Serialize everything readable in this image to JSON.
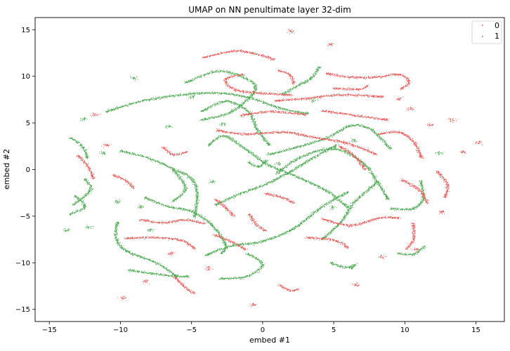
{
  "chart_data": {
    "type": "scatter",
    "title": "UMAP on NN penultimate layer 32-dim",
    "xlabel": "embed #1",
    "ylabel": "embed #2",
    "xlim": [
      -16,
      17
    ],
    "ylim": [
      -16.3,
      16.3
    ],
    "xticks": [
      -15,
      -10,
      -5,
      0,
      5,
      10,
      15
    ],
    "yticks": [
      -15,
      -10,
      -5,
      0,
      5,
      10,
      15
    ],
    "grid": false,
    "legend": "top-right",
    "series": [
      {
        "name": "0",
        "color": "#e8534f",
        "strands": [
          [
            [
              -4.2,
              12.0
            ],
            [
              -2.0,
              12.7
            ],
            [
              -0.5,
              12.4
            ],
            [
              0.8,
              11.8
            ]
          ],
          [
            [
              -1.3,
              10.2
            ],
            [
              -2.6,
              9.7
            ],
            [
              -2.0,
              8.6
            ],
            [
              -0.3,
              8.2
            ],
            [
              2.0,
              8.0
            ]
          ],
          [
            [
              4.5,
              10.3
            ],
            [
              6.2,
              9.9
            ],
            [
              8.0,
              9.9
            ],
            [
              9.6,
              10.2
            ],
            [
              10.3,
              9.4
            ],
            [
              9.7,
              8.6
            ]
          ],
          [
            [
              5.0,
              8.7
            ],
            [
              6.8,
              8.6
            ],
            [
              7.4,
              9.0
            ]
          ],
          [
            [
              0.9,
              7.4
            ],
            [
              3.0,
              7.6
            ],
            [
              5.5,
              8.0
            ],
            [
              8.5,
              7.8
            ]
          ],
          [
            [
              1.1,
              10.6
            ],
            [
              1.9,
              10.2
            ],
            [
              2.2,
              9.2
            ]
          ],
          [
            [
              -1.5,
              5.8
            ],
            [
              0.5,
              6.2
            ],
            [
              3.0,
              5.9
            ]
          ],
          [
            [
              4.2,
              6.3
            ],
            [
              6.5,
              5.8
            ],
            [
              8.8,
              5.3
            ]
          ],
          [
            [
              -3.2,
              4.2
            ],
            [
              -1.2,
              3.8
            ],
            [
              1.6,
              4.0
            ],
            [
              3.4,
              3.5
            ],
            [
              6.0,
              2.8
            ],
            [
              8.0,
              1.6
            ]
          ],
          [
            [
              -7.0,
              2.4
            ],
            [
              -6.3,
              1.6
            ],
            [
              -5.3,
              1.9
            ]
          ],
          [
            [
              -10.5,
              -0.6
            ],
            [
              -9.6,
              -1.2
            ],
            [
              -9.1,
              -2.0
            ]
          ],
          [
            [
              -8.6,
              -5.4
            ],
            [
              -7.0,
              -5.7
            ],
            [
              -5.4,
              -5.4
            ],
            [
              -4.1,
              -5.8
            ]
          ],
          [
            [
              -9.6,
              -7.4
            ],
            [
              -7.6,
              -7.3
            ],
            [
              -5.7,
              -7.6
            ],
            [
              -4.8,
              -8.5
            ]
          ],
          [
            [
              -3.4,
              -7.0
            ],
            [
              -2.0,
              -7.9
            ],
            [
              -1.2,
              -8.6
            ]
          ],
          [
            [
              -0.9,
              -4.8
            ],
            [
              -0.5,
              -5.8
            ],
            [
              0.2,
              -6.6
            ]
          ],
          [
            [
              4.2,
              -5.3
            ],
            [
              6.2,
              -6.0
            ],
            [
              8.2,
              -5.2
            ],
            [
              9.6,
              -5.2
            ]
          ],
          [
            [
              3.1,
              -7.3
            ],
            [
              5.1,
              -7.6
            ],
            [
              6.0,
              -8.4
            ]
          ],
          [
            [
              5.4,
              2.5
            ],
            [
              6.5,
              1.4
            ],
            [
              7.2,
              0.0
            ]
          ],
          [
            [
              9.8,
              -1.1
            ],
            [
              11.0,
              -2.2
            ],
            [
              11.6,
              -3.6
            ]
          ],
          [
            [
              12.3,
              -0.2
            ],
            [
              13.0,
              -1.7
            ],
            [
              12.8,
              -3.0
            ]
          ],
          [
            [
              8.2,
              3.8
            ],
            [
              9.6,
              4.0
            ],
            [
              10.6,
              3.0
            ],
            [
              11.2,
              1.2
            ]
          ],
          [
            [
              10.6,
              -5.8
            ],
            [
              10.6,
              -7.5
            ],
            [
              10.1,
              -8.5
            ]
          ],
          [
            [
              -6.2,
              -11.5
            ],
            [
              -5.5,
              -12.6
            ],
            [
              -4.8,
              -13.3
            ]
          ],
          [
            [
              1.2,
              -12.4
            ],
            [
              2.0,
              -13.0
            ],
            [
              2.5,
              -12.8
            ]
          ],
          [
            [
              -13.0,
              1.5
            ],
            [
              -12.3,
              0.4
            ],
            [
              -11.9,
              -1.0
            ]
          ],
          [
            [
              0.2,
              -2.6
            ],
            [
              1.4,
              -3.0
            ],
            [
              2.2,
              -3.6
            ]
          ],
          [
            [
              -3.3,
              -3.2
            ],
            [
              -2.6,
              -4.1
            ],
            [
              -2.0,
              -5.0
            ]
          ]
        ],
        "clusters": [
          [
            -11.0,
            2.6
          ],
          [
            -8.2,
            -12.0
          ],
          [
            -6.4,
            -9.0
          ],
          [
            4.8,
            13.4
          ],
          [
            2.0,
            14.8
          ],
          [
            9.6,
            7.6
          ],
          [
            10.4,
            6.5
          ],
          [
            -11.8,
            5.9
          ],
          [
            12.6,
            -4.6
          ],
          [
            8.4,
            -9.4
          ],
          [
            11.8,
            4.8
          ],
          [
            6.6,
            -12.4
          ],
          [
            -3.8,
            -10.6
          ],
          [
            -0.7,
            -14.5
          ],
          [
            14.1,
            1.9
          ],
          [
            13.3,
            5.3
          ],
          [
            15.2,
            2.9
          ],
          [
            10.8,
            -8.6
          ],
          [
            -9.8,
            -13.8
          ]
        ]
      },
      {
        "name": "1",
        "color": "#45a64a",
        "strands": [
          [
            [
              -11.0,
              6.2
            ],
            [
              -8.0,
              7.5
            ],
            [
              -4.0,
              8.2
            ],
            [
              -1.2,
              7.8
            ],
            [
              1.4,
              6.5
            ],
            [
              3.2,
              6.0
            ]
          ],
          [
            [
              -5.4,
              9.3
            ],
            [
              -3.3,
              10.5
            ],
            [
              -1.5,
              10.0
            ],
            [
              -0.5,
              8.6
            ],
            [
              -2.2,
              6.2
            ],
            [
              -4.3,
              5.3
            ]
          ],
          [
            [
              -3.8,
              2.6
            ],
            [
              -2.7,
              3.6
            ],
            [
              -1.2,
              2.2
            ],
            [
              0.4,
              0.5
            ],
            [
              2.6,
              -0.9
            ],
            [
              4.6,
              -2.4
            ],
            [
              6.0,
              -4.1
            ]
          ],
          [
            [
              -10.0,
              2.0
            ],
            [
              -8.0,
              1.2
            ],
            [
              -6.2,
              0.0
            ],
            [
              -5.0,
              -1.0
            ],
            [
              -4.6,
              -2.8
            ],
            [
              -4.8,
              -5.1
            ]
          ],
          [
            [
              -8.3,
              -3.0
            ],
            [
              -6.8,
              -3.9
            ],
            [
              -5.0,
              -4.5
            ],
            [
              -3.6,
              -5.9
            ],
            [
              -2.6,
              -8.1
            ],
            [
              -2.9,
              -9.0
            ]
          ],
          [
            [
              -4.0,
              -9.2
            ],
            [
              -2.2,
              -8.2
            ],
            [
              0.0,
              -7.7
            ],
            [
              2.2,
              -6.3
            ],
            [
              4.2,
              -4.0
            ],
            [
              6.0,
              -2.4
            ]
          ],
          [
            [
              -3.3,
              -3.8
            ],
            [
              -1.6,
              -2.6
            ],
            [
              0.2,
              -1.6
            ],
            [
              2.0,
              -0.2
            ],
            [
              3.5,
              1.2
            ],
            [
              5.2,
              2.6
            ]
          ],
          [
            [
              0.4,
              1.6
            ],
            [
              2.2,
              2.3
            ],
            [
              4.5,
              3.4
            ],
            [
              6.2,
              4.7
            ],
            [
              7.5,
              4.4
            ],
            [
              8.4,
              3.2
            ],
            [
              9.0,
              2.2
            ]
          ],
          [
            [
              1.0,
              -0.4
            ],
            [
              2.8,
              1.4
            ],
            [
              5.0,
              2.2
            ],
            [
              7.0,
              0.8
            ],
            [
              8.2,
              -1.6
            ],
            [
              8.8,
              -3.2
            ]
          ],
          [
            [
              4.2,
              -7.5
            ],
            [
              5.6,
              -5.5
            ],
            [
              6.4,
              -3.6
            ],
            [
              8.0,
              -1.4
            ]
          ],
          [
            [
              -6.0,
              -11.5
            ],
            [
              -7.5,
              -10.0
            ],
            [
              -9.5,
              -8.8
            ],
            [
              -10.3,
              -7.4
            ],
            [
              -10.2,
              -5.6
            ]
          ],
          [
            [
              -9.4,
              -10.8
            ],
            [
              -8.0,
              -11.1
            ],
            [
              -6.6,
              -11.4
            ],
            [
              -5.2,
              -11.5
            ]
          ],
          [
            [
              -3.0,
              -11.7
            ],
            [
              -1.2,
              -11.5
            ],
            [
              0.0,
              -10.2
            ],
            [
              -1.1,
              -9.0
            ]
          ],
          [
            [
              -12.5,
              -1.0
            ],
            [
              -12.1,
              -2.2
            ],
            [
              -13.3,
              -3.8
            ]
          ],
          [
            [
              -13.5,
              3.4
            ],
            [
              -12.7,
              2.5
            ],
            [
              -12.3,
              1.2
            ]
          ],
          [
            [
              -4.3,
              6.2
            ],
            [
              -2.6,
              7.3
            ],
            [
              -1.0,
              6.2
            ],
            [
              -0.4,
              4.3
            ],
            [
              0.5,
              2.6
            ]
          ],
          [
            [
              4.8,
              -10.0
            ],
            [
              5.8,
              -10.5
            ],
            [
              6.6,
              -10.2
            ]
          ],
          [
            [
              9.0,
              -4.2
            ],
            [
              10.6,
              -4.2
            ],
            [
              11.3,
              -3.0
            ],
            [
              11.1,
              -1.2
            ]
          ],
          [
            [
              9.5,
              -9.0
            ],
            [
              10.6,
              -9.1
            ],
            [
              11.4,
              -8.2
            ]
          ],
          [
            [
              4.0,
              11.0
            ],
            [
              3.5,
              9.9
            ],
            [
              2.5,
              9.0
            ],
            [
              1.4,
              8.1
            ]
          ],
          [
            [
              -13.2,
              -2.8
            ],
            [
              -12.5,
              -4.0
            ],
            [
              -13.6,
              -4.8
            ]
          ],
          [
            [
              -6.3,
              0.0
            ],
            [
              -5.4,
              -2.0
            ],
            [
              -6.3,
              -3.4
            ]
          ],
          [
            [
              -1.0,
              0.8
            ],
            [
              -0.3,
              0.3
            ],
            [
              0.3,
              1.0
            ]
          ]
        ],
        "clusters": [
          [
            -11.2,
            1.8
          ],
          [
            -8.6,
            -4.0
          ],
          [
            -5.0,
            7.8
          ],
          [
            -6.6,
            4.6
          ],
          [
            -9.0,
            9.8
          ],
          [
            6.3,
            -10.5
          ],
          [
            -2.8,
            4.9
          ],
          [
            -13.8,
            -6.5
          ],
          [
            -12.2,
            -6.2
          ],
          [
            4.9,
            -4.1
          ],
          [
            -7.9,
            -6.5
          ],
          [
            3.6,
            7.4
          ],
          [
            12.4,
            1.8
          ],
          [
            -12.6,
            5.4
          ],
          [
            -10.2,
            -3.5
          ],
          [
            1.1,
            0.6
          ],
          [
            6.4,
            3.1
          ],
          [
            -3.6,
            -1.3
          ]
        ]
      }
    ]
  }
}
